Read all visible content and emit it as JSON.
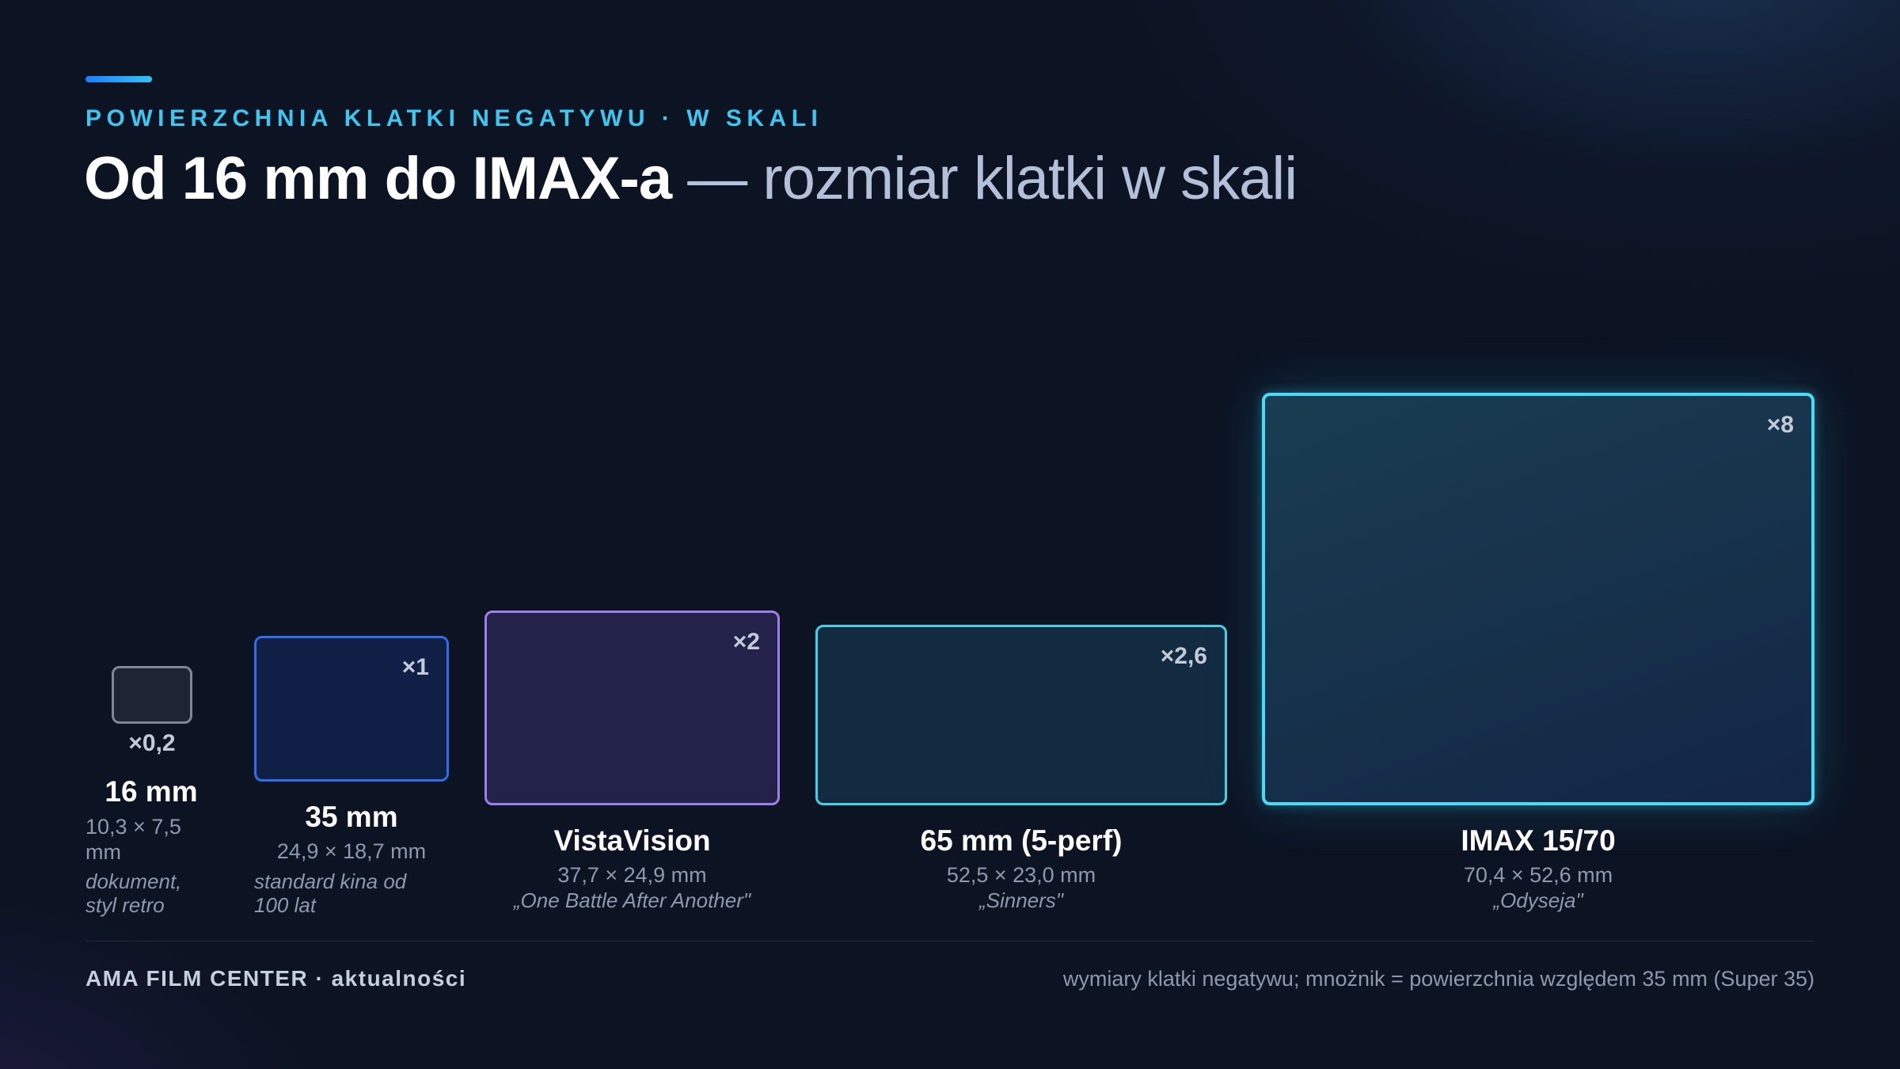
{
  "eyebrow": "POWIERZCHNIA KLATKI NEGATYWU · W SKALI",
  "title": {
    "bold": "Od 16 mm do IMAX-a",
    "light": " — rozmiar klatki w skali"
  },
  "colors": {
    "accent": "#3fc6ef",
    "format_16mm": "#7f8796",
    "format_35mm": "#2f6ee8",
    "format_vistavision": "#a27de8",
    "format_65mm": "#42d2e8",
    "format_imax": "#48dbf5"
  },
  "formats": [
    {
      "name": "16 mm",
      "dims": "10,3 × 7,5 mm",
      "multiplier": "×0,2",
      "note": "dokument, styl retro"
    },
    {
      "name": "35 mm",
      "dims": "24,9 × 18,7 mm",
      "multiplier": "×1",
      "note": "standard kina od 100 lat"
    },
    {
      "name": "VistaVision",
      "dims": "37,7 × 24,9 mm",
      "multiplier": "×2",
      "note": "„One Battle After Another\""
    },
    {
      "name": "65 mm (5-perf)",
      "dims": "52,5 × 23,0 mm",
      "multiplier": "×2,6",
      "note": "„Sinners\""
    },
    {
      "name": "IMAX 15/70",
      "dims": "70,4 × 52,6 mm",
      "multiplier": "×8",
      "note": "„Odyseja\""
    }
  ],
  "footer": {
    "left": "AMA FILM CENTER · aktualności",
    "right": "wymiary klatki negatywu; mnożnik = powierzchnia względem 35 mm (Super 35)"
  }
}
